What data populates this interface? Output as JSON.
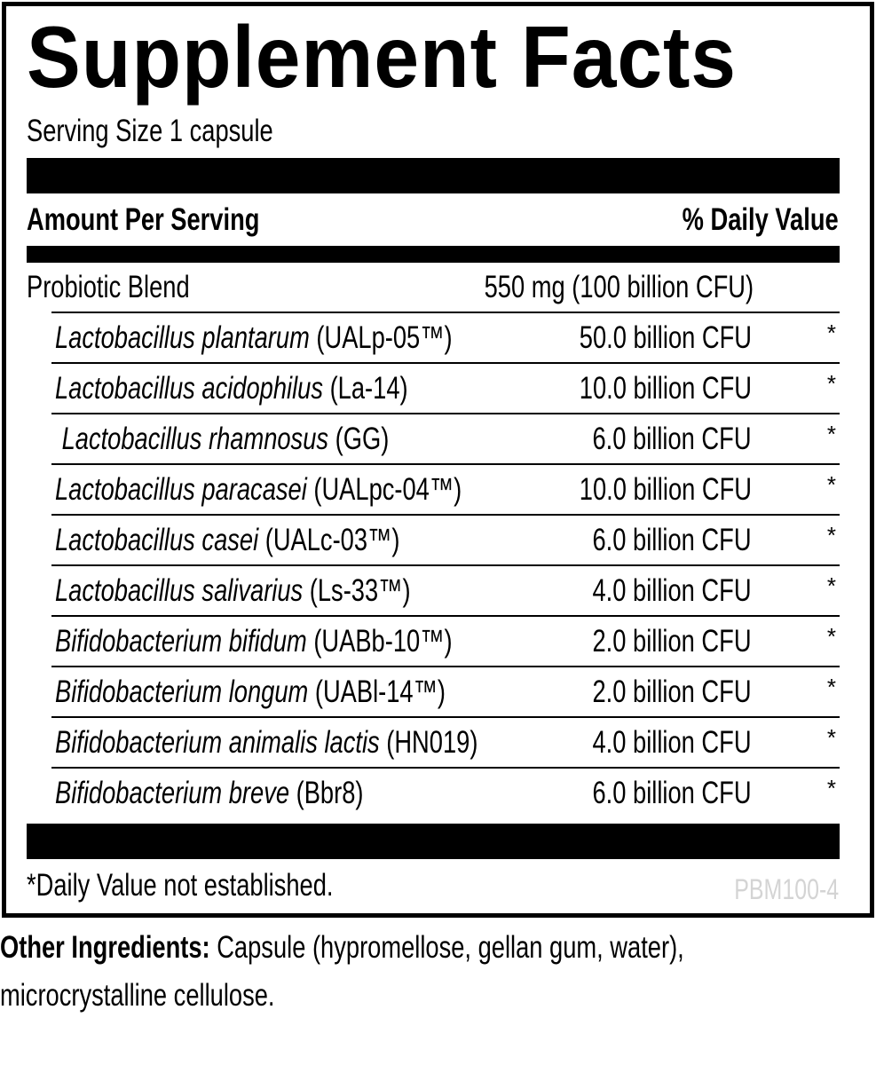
{
  "title": "Supplement Facts",
  "serving_size": "Serving Size 1 capsule",
  "header": {
    "amount": "Amount Per Serving",
    "dv": "% Daily Value"
  },
  "blend": {
    "name": "Probiotic Blend",
    "amount": "550 mg (100 billion CFU)"
  },
  "ingredients": [
    {
      "species": "Lactobacillus plantarum",
      "strain": " (UALp-05™)",
      "amount": "50.0 billion CFU",
      "dv": "*"
    },
    {
      "species": "Lactobacillus acidophilus",
      "strain": " (La-14)",
      "amount": "10.0 billion CFU",
      "dv": "*"
    },
    {
      "species": " Lactobacillus rhamnosus",
      "strain": " (GG)",
      "amount": "6.0 billion CFU",
      "dv": "*"
    },
    {
      "species": "Lactobacillus paracasei",
      "strain": " (UALpc-04™)",
      "amount": "10.0 billion CFU",
      "dv": "*"
    },
    {
      "species": "Lactobacillus casei",
      "strain": " (UALc-03™)",
      "amount": "6.0 billion CFU",
      "dv": "*"
    },
    {
      "species": "Lactobacillus salivarius",
      "strain": " (Ls-33™)",
      "amount": "4.0 billion CFU",
      "dv": "*"
    },
    {
      "species": "Bifidobacterium bifidum",
      "strain": " (UABb-10™)",
      "amount": "2.0 billion CFU",
      "dv": "*"
    },
    {
      "species": "Bifidobacterium longum",
      "strain": " (UABl-14™)",
      "amount": "2.0 billion CFU",
      "dv": "*"
    },
    {
      "species": "Bifidobacterium animalis lactis",
      "strain": " (HN019)",
      "amount": "4.0 billion CFU",
      "dv": "*"
    },
    {
      "species": "Bifidobacterium breve",
      "strain": " (Bbr8)",
      "amount": "6.0 billion CFU",
      "dv": "*"
    }
  ],
  "footnote": "*Daily Value not established.",
  "code": "PBM100-4",
  "other": {
    "label": "Other Ingredients:",
    "text": " Capsule (hypromellose, gellan gum, water),",
    "text2": "microcrystalline cellulose."
  }
}
